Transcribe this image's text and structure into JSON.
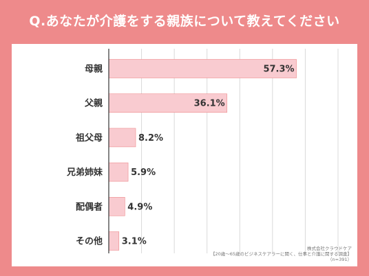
{
  "title": "Q.あなたが介護をする親族について教えてください",
  "colors": {
    "background": "#ee8a8b",
    "bar_fill": "#f9cbd0",
    "bar_stroke": "#ee8a8b"
  },
  "source": {
    "company": "株式会社クラウドケア",
    "survey": "【20歳〜65歳のビジネスケアラーに聞く、仕事と介護に関する調査】",
    "sample": "（n=391）"
  },
  "chart_data": {
    "type": "bar",
    "orientation": "horizontal",
    "title": "",
    "xlabel": "",
    "ylabel": "",
    "categories": [
      "母親",
      "父親",
      "祖父母",
      "兄弟姉妹",
      "配偶者",
      "その他"
    ],
    "values": [
      57.3,
      36.1,
      8.2,
      5.9,
      4.9,
      3.1
    ],
    "value_labels": [
      "57.3%",
      "36.1%",
      "8.2%",
      "5.9%",
      "4.9%",
      "3.1%"
    ],
    "xlim": [
      0,
      70
    ],
    "grid": true,
    "legend": "none"
  }
}
